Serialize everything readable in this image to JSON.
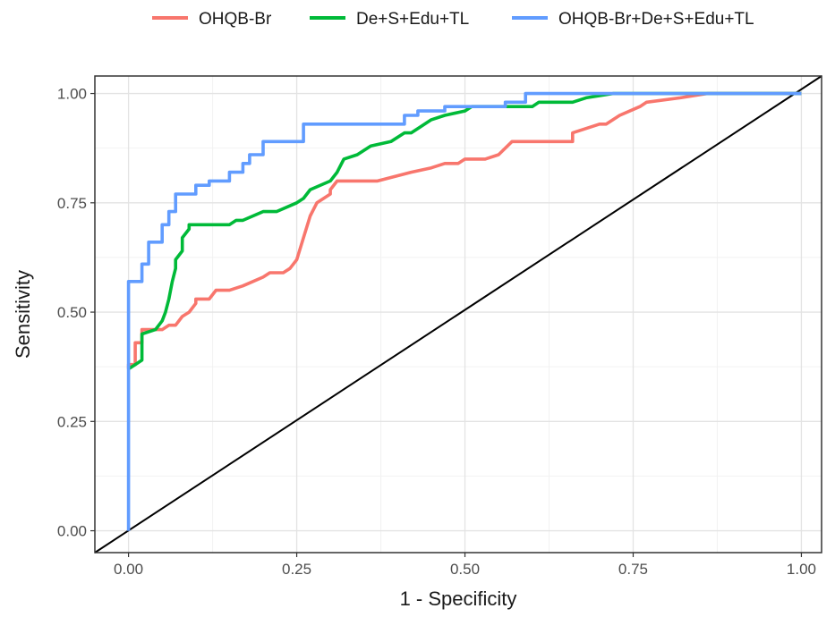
{
  "chart_data": {
    "type": "line",
    "xlabel": "1 - Specificity",
    "ylabel": "Sensitivity",
    "xlim": [
      -0.05,
      1.03
    ],
    "ylim": [
      -0.05,
      1.04
    ],
    "x_ticks": [
      "0.00",
      "0.25",
      "0.50",
      "0.75",
      "1.00"
    ],
    "y_ticks": [
      "0.00",
      "0.25",
      "0.50",
      "0.75",
      "1.00"
    ],
    "grid": true,
    "legend_position": "top",
    "series": [
      {
        "name": "OHQB-Br",
        "color": "#F8766D",
        "points": [
          [
            0,
            0.37
          ],
          [
            0,
            0.38
          ],
          [
            0.01,
            0.38
          ],
          [
            0.01,
            0.43
          ],
          [
            0.02,
            0.43
          ],
          [
            0.02,
            0.46
          ],
          [
            0.05,
            0.46
          ],
          [
            0.06,
            0.47
          ],
          [
            0.07,
            0.47
          ],
          [
            0.08,
            0.49
          ],
          [
            0.09,
            0.5
          ],
          [
            0.1,
            0.52
          ],
          [
            0.1,
            0.53
          ],
          [
            0.12,
            0.53
          ],
          [
            0.13,
            0.55
          ],
          [
            0.15,
            0.55
          ],
          [
            0.17,
            0.56
          ],
          [
            0.2,
            0.58
          ],
          [
            0.21,
            0.59
          ],
          [
            0.23,
            0.59
          ],
          [
            0.24,
            0.6
          ],
          [
            0.245,
            0.61
          ],
          [
            0.25,
            0.62
          ],
          [
            0.26,
            0.67
          ],
          [
            0.27,
            0.72
          ],
          [
            0.28,
            0.75
          ],
          [
            0.29,
            0.76
          ],
          [
            0.3,
            0.77
          ],
          [
            0.3,
            0.78
          ],
          [
            0.31,
            0.8
          ],
          [
            0.33,
            0.8
          ],
          [
            0.37,
            0.8
          ],
          [
            0.42,
            0.82
          ],
          [
            0.45,
            0.83
          ],
          [
            0.47,
            0.84
          ],
          [
            0.49,
            0.84
          ],
          [
            0.5,
            0.85
          ],
          [
            0.53,
            0.85
          ],
          [
            0.55,
            0.86
          ],
          [
            0.57,
            0.89
          ],
          [
            0.6,
            0.89
          ],
          [
            0.61,
            0.89
          ],
          [
            0.66,
            0.89
          ],
          [
            0.66,
            0.91
          ],
          [
            0.7,
            0.93
          ],
          [
            0.71,
            0.93
          ],
          [
            0.73,
            0.95
          ],
          [
            0.76,
            0.97
          ],
          [
            0.77,
            0.98
          ],
          [
            0.82,
            0.99
          ],
          [
            0.86,
            1.0
          ],
          [
            1.0,
            1.0
          ]
        ]
      },
      {
        "name": "De+S+Edu+TL",
        "color": "#00BA38",
        "points": [
          [
            0,
            0.37
          ],
          [
            0.01,
            0.38
          ],
          [
            0.02,
            0.39
          ],
          [
            0.02,
            0.45
          ],
          [
            0.04,
            0.46
          ],
          [
            0.05,
            0.48
          ],
          [
            0.055,
            0.5
          ],
          [
            0.06,
            0.53
          ],
          [
            0.065,
            0.57
          ],
          [
            0.07,
            0.6
          ],
          [
            0.07,
            0.62
          ],
          [
            0.08,
            0.64
          ],
          [
            0.08,
            0.67
          ],
          [
            0.09,
            0.69
          ],
          [
            0.09,
            0.7
          ],
          [
            0.12,
            0.7
          ],
          [
            0.15,
            0.7
          ],
          [
            0.16,
            0.71
          ],
          [
            0.17,
            0.71
          ],
          [
            0.2,
            0.73
          ],
          [
            0.22,
            0.73
          ],
          [
            0.25,
            0.75
          ],
          [
            0.26,
            0.76
          ],
          [
            0.27,
            0.78
          ],
          [
            0.3,
            0.8
          ],
          [
            0.31,
            0.82
          ],
          [
            0.32,
            0.85
          ],
          [
            0.34,
            0.86
          ],
          [
            0.36,
            0.88
          ],
          [
            0.39,
            0.89
          ],
          [
            0.41,
            0.91
          ],
          [
            0.42,
            0.91
          ],
          [
            0.43,
            0.92
          ],
          [
            0.45,
            0.94
          ],
          [
            0.47,
            0.95
          ],
          [
            0.5,
            0.96
          ],
          [
            0.51,
            0.97
          ],
          [
            0.55,
            0.97
          ],
          [
            0.6,
            0.97
          ],
          [
            0.61,
            0.98
          ],
          [
            0.66,
            0.98
          ],
          [
            0.68,
            0.99
          ],
          [
            0.72,
            1.0
          ],
          [
            1.0,
            1.0
          ]
        ]
      },
      {
        "name": "OHQB-Br+De+S+Edu+TL",
        "color": "#619CFF",
        "points": [
          [
            0,
            0.0
          ],
          [
            0,
            0.57
          ],
          [
            0.02,
            0.57
          ],
          [
            0.02,
            0.61
          ],
          [
            0.03,
            0.61
          ],
          [
            0.03,
            0.66
          ],
          [
            0.05,
            0.66
          ],
          [
            0.05,
            0.7
          ],
          [
            0.06,
            0.7
          ],
          [
            0.06,
            0.73
          ],
          [
            0.07,
            0.73
          ],
          [
            0.07,
            0.77
          ],
          [
            0.1,
            0.77
          ],
          [
            0.1,
            0.79
          ],
          [
            0.12,
            0.79
          ],
          [
            0.12,
            0.8
          ],
          [
            0.15,
            0.8
          ],
          [
            0.15,
            0.82
          ],
          [
            0.17,
            0.82
          ],
          [
            0.17,
            0.84
          ],
          [
            0.18,
            0.84
          ],
          [
            0.18,
            0.86
          ],
          [
            0.2,
            0.86
          ],
          [
            0.2,
            0.89
          ],
          [
            0.26,
            0.89
          ],
          [
            0.26,
            0.93
          ],
          [
            0.38,
            0.93
          ],
          [
            0.41,
            0.93
          ],
          [
            0.41,
            0.95
          ],
          [
            0.43,
            0.95
          ],
          [
            0.43,
            0.96
          ],
          [
            0.47,
            0.96
          ],
          [
            0.47,
            0.97
          ],
          [
            0.56,
            0.97
          ],
          [
            0.56,
            0.98
          ],
          [
            0.59,
            0.98
          ],
          [
            0.59,
            1.0
          ],
          [
            1.0,
            1.0
          ]
        ]
      },
      {
        "name": "",
        "color": "#000000",
        "points": [
          [
            -0.05,
            -0.05
          ],
          [
            1.03,
            1.04
          ]
        ]
      }
    ]
  }
}
